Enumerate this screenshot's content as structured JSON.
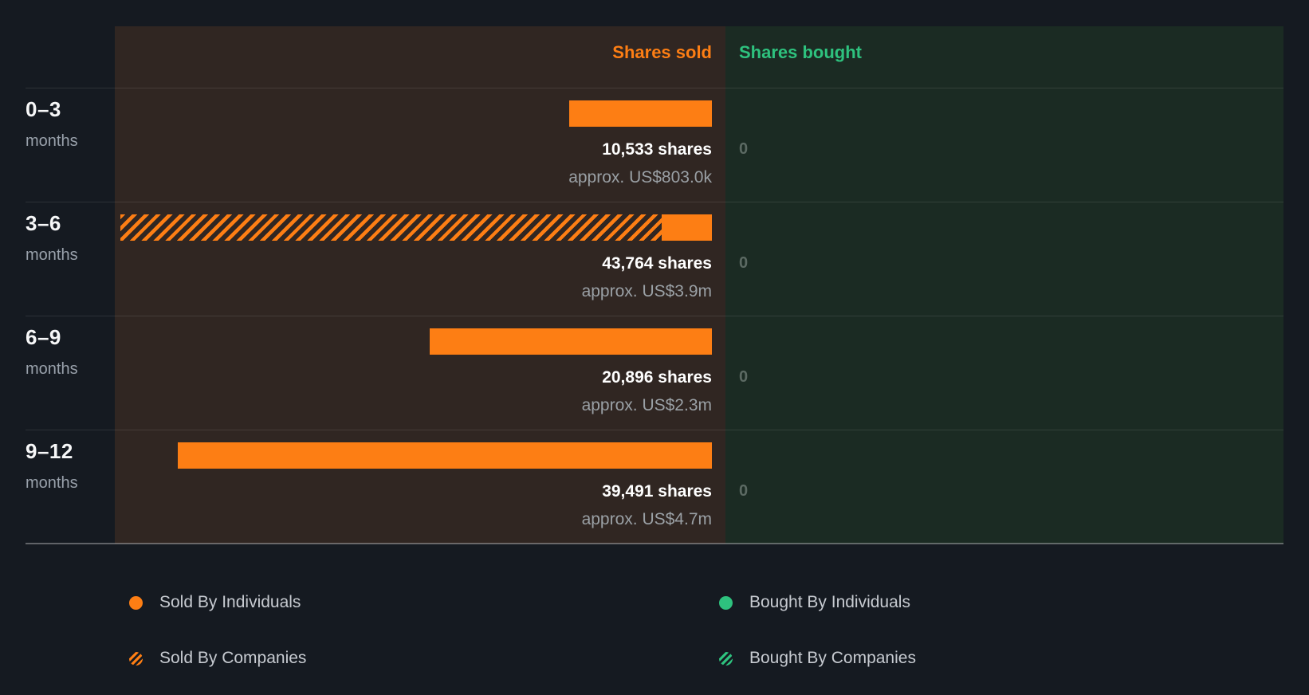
{
  "header": {
    "sold_label": "Shares sold",
    "bought_label": "Shares bought"
  },
  "colors": {
    "sold_accent": "#fd7e14",
    "bought_accent": "#2ec27e",
    "page_bg": "#151a21",
    "sold_panel_bg": "#302622",
    "bought_panel_bg": "#1b2b23"
  },
  "chart_data": {
    "type": "bar",
    "orientation": "horizontal",
    "unit": "shares",
    "max_shares": 43764,
    "columns": [
      "Shares sold",
      "Shares bought"
    ],
    "rows": [
      {
        "label": "0–3",
        "sublabel": "months",
        "sold_shares": 10533,
        "sold_shares_text": "10,533 shares",
        "sold_value_text": "approx. US$803.0k",
        "bought_shares": 0,
        "bought_text": "0",
        "segments": [
          {
            "type": "individuals",
            "style": "solid",
            "fraction": 1
          }
        ]
      },
      {
        "label": "3–6",
        "sublabel": "months",
        "sold_shares": 43764,
        "sold_shares_text": "43,764 shares",
        "sold_value_text": "approx. US$3.9m",
        "bought_shares": 0,
        "bought_text": "0",
        "segments": [
          {
            "type": "companies",
            "style": "hatched",
            "fraction": 0.915
          },
          {
            "type": "individuals",
            "style": "solid",
            "fraction": 0.085
          }
        ]
      },
      {
        "label": "6–9",
        "sublabel": "months",
        "sold_shares": 20896,
        "sold_shares_text": "20,896 shares",
        "sold_value_text": "approx. US$2.3m",
        "bought_shares": 0,
        "bought_text": "0",
        "segments": [
          {
            "type": "individuals",
            "style": "solid",
            "fraction": 1
          }
        ]
      },
      {
        "label": "9–12",
        "sublabel": "months",
        "sold_shares": 39491,
        "sold_shares_text": "39,491 shares",
        "sold_value_text": "approx. US$4.7m",
        "bought_shares": 0,
        "bought_text": "0",
        "segments": [
          {
            "type": "individuals",
            "style": "solid",
            "fraction": 1
          }
        ]
      }
    ],
    "legend": [
      {
        "label": "Sold By Individuals",
        "swatch": "solid-orange"
      },
      {
        "label": "Sold By Companies",
        "swatch": "hatched-orange"
      },
      {
        "label": "Bought By Individuals",
        "swatch": "solid-green"
      },
      {
        "label": "Bought By Companies",
        "swatch": "hatched-green"
      }
    ]
  }
}
